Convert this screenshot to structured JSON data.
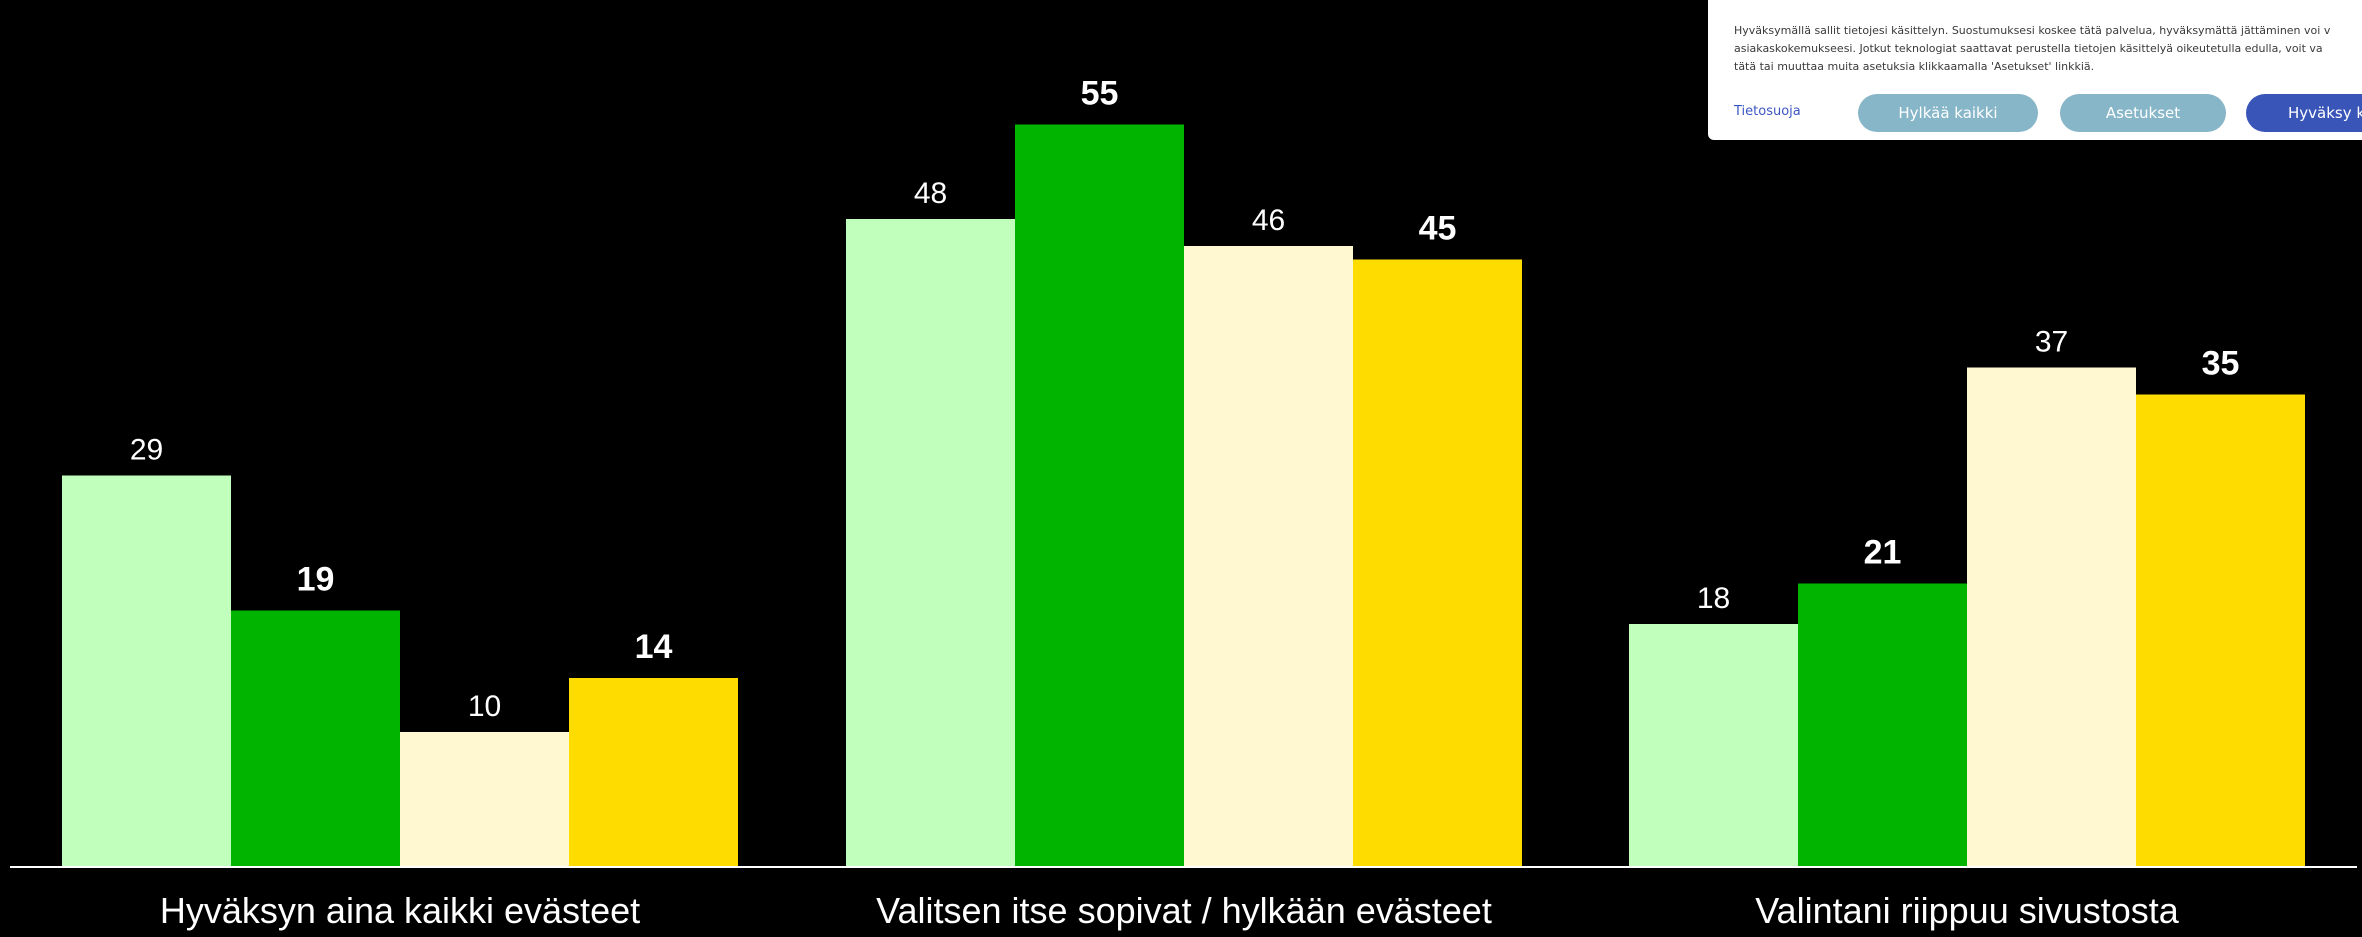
{
  "chart_data": {
    "type": "bar",
    "categories": [
      "Hyväksyn aina kaikki evästeet",
      "Valitsen itse sopivat / hylkään evästeet",
      "Valintani riippuu sivustosta"
    ],
    "series": [
      {
        "values": [
          29,
          48,
          18
        ],
        "color": "#c0ffbc",
        "label_bold": false
      },
      {
        "values": [
          19,
          55,
          21
        ],
        "color": "#00b400",
        "label_bold": true
      },
      {
        "values": [
          10,
          46,
          37
        ],
        "color": "#fff8d0",
        "label_bold": false
      },
      {
        "values": [
          14,
          45,
          35
        ],
        "color": "#ffdc00",
        "label_bold": true
      }
    ],
    "ylim": [
      0,
      60
    ],
    "grid": false,
    "legend": "none",
    "baseline_color": "#ffffff",
    "label_color": "#ffffff",
    "background": "#000000"
  },
  "cookie_banner": {
    "text_lines": [
      "Hyväksymällä sallit tietojesi käsittelyn. Suostumuksesi koskee tätä palvelua, hyväksymättä jättäminen voi v",
      "asiakaskokemukseesi. Jotkut teknologiat saattavat perustella tietojen käsittelyä oikeutetulla edulla, voit va",
      "tätä tai muuttaa muita asetuksia klikkaamalla 'Asetukset' linkkiä."
    ],
    "privacy_link": "Tietosuoja",
    "reject_button": "Hylkää kaikki",
    "settings_button": "Asetukset",
    "accept_button": "Hyväksy ka",
    "colors": {
      "background": "#ffffff",
      "text": "#3a3a3a",
      "link": "#3d56c4",
      "secondary_button": "#86b6c8",
      "primary_button": "#3a55b8"
    }
  }
}
